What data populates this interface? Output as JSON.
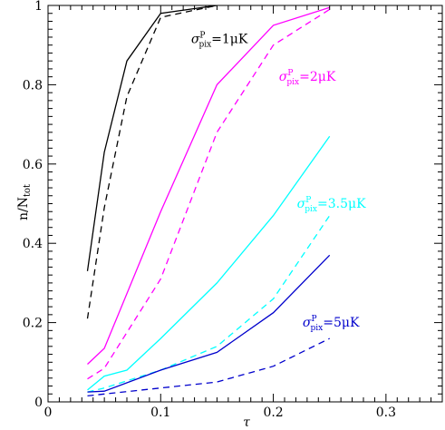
{
  "chart_data": {
    "type": "line",
    "xlabel": "τ",
    "ylabel": "n/N_tot",
    "ylabel_main": "n/N",
    "ylabel_sub": "tot",
    "xlim": [
      0,
      0.35
    ],
    "ylim": [
      0,
      1
    ],
    "xticks": [
      0,
      0.1,
      0.2,
      0.3
    ],
    "xtick_labels": [
      "0",
      "0.1",
      "0.2",
      "0.3"
    ],
    "yticks": [
      0,
      0.2,
      0.4,
      0.6,
      0.8,
      1
    ],
    "ytick_labels": [
      "0",
      "0.2",
      "0.4",
      "0.6",
      "0.8",
      "1"
    ],
    "grid": false,
    "series": [
      {
        "color": "#000000",
        "style": "solid",
        "x": [
          0.035,
          0.05,
          0.07,
          0.1,
          0.15
        ],
        "y": [
          0.33,
          0.63,
          0.86,
          0.98,
          1.0
        ]
      },
      {
        "color": "#000000",
        "style": "dashed",
        "x": [
          0.035,
          0.05,
          0.07,
          0.1,
          0.15
        ],
        "y": [
          0.21,
          0.49,
          0.77,
          0.97,
          1.0
        ]
      },
      {
        "color": "#ff00ff",
        "style": "solid",
        "x": [
          0.035,
          0.05,
          0.1,
          0.15,
          0.2,
          0.25
        ],
        "y": [
          0.095,
          0.135,
          0.48,
          0.8,
          0.95,
          0.995
        ]
      },
      {
        "color": "#ff00ff",
        "style": "dashed",
        "x": [
          0.035,
          0.05,
          0.1,
          0.15,
          0.2,
          0.25
        ],
        "y": [
          0.058,
          0.085,
          0.31,
          0.68,
          0.9,
          0.99
        ]
      },
      {
        "color": "#00ffff",
        "style": "solid",
        "x": [
          0.035,
          0.05,
          0.07,
          0.1,
          0.15,
          0.2,
          0.25
        ],
        "y": [
          0.03,
          0.065,
          0.08,
          0.16,
          0.3,
          0.47,
          0.67
        ]
      },
      {
        "color": "#00ffff",
        "style": "dashed",
        "x": [
          0.035,
          0.05,
          0.1,
          0.15,
          0.2,
          0.25
        ],
        "y": [
          0.025,
          0.035,
          0.08,
          0.14,
          0.26,
          0.47
        ]
      },
      {
        "color": "#0000cc",
        "style": "solid",
        "x": [
          0.035,
          0.05,
          0.1,
          0.15,
          0.2,
          0.25
        ],
        "y": [
          0.025,
          0.027,
          0.08,
          0.125,
          0.225,
          0.37
        ]
      },
      {
        "color": "#0000cc",
        "style": "dashed",
        "x": [
          0.035,
          0.05,
          0.1,
          0.15,
          0.2,
          0.25
        ],
        "y": [
          0.015,
          0.02,
          0.035,
          0.05,
          0.09,
          0.16
        ]
      }
    ],
    "annotations": [
      {
        "pre": "σ",
        "sup": "P",
        "sub": "pix",
        "post": "=1μK",
        "color": "#000000",
        "x": 0.127,
        "y": 0.905
      },
      {
        "pre": "σ",
        "sup": "P",
        "sub": "pix",
        "post": "=2μK",
        "color": "#ff00ff",
        "x": 0.205,
        "y": 0.81
      },
      {
        "pre": "σ",
        "sup": "P",
        "sub": "pix",
        "post": "=3.5μK",
        "color": "#00ffff",
        "x": 0.221,
        "y": 0.49
      },
      {
        "pre": "σ",
        "sup": "P",
        "sub": "pix",
        "post": "=5μK",
        "color": "#0000cc",
        "x": 0.226,
        "y": 0.19
      }
    ]
  }
}
